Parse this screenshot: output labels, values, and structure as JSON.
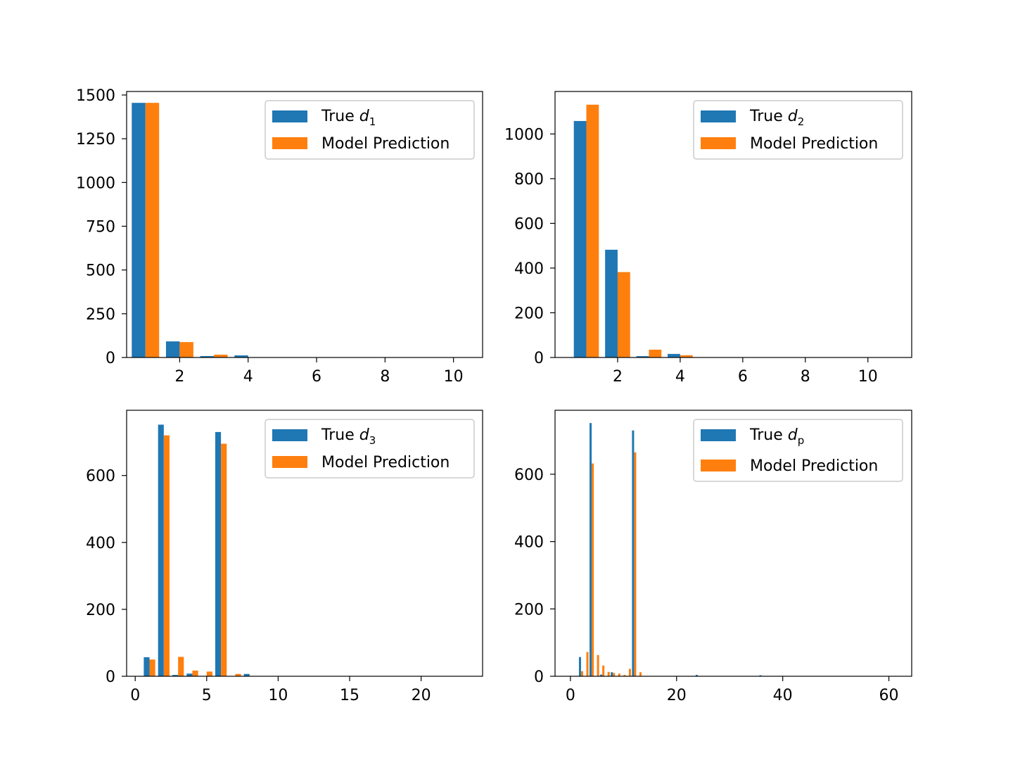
{
  "colors": {
    "true_series": "#1f77b4",
    "prediction_series": "#ff7f0e"
  },
  "chart_data": [
    {
      "type": "bar",
      "panel": "top-left",
      "xlim": [
        0.45,
        10.85
      ],
      "ylim": [
        0,
        1520
      ],
      "xticks": [
        2,
        4,
        6,
        8,
        10
      ],
      "yticks": [
        0,
        250,
        500,
        750,
        1000,
        1250,
        1500
      ],
      "bar_width": 0.4,
      "legend": {
        "placement": "top-right",
        "true_label": "True ",
        "true_sub": "1",
        "pred_label": "Model Prediction"
      },
      "series": [
        {
          "name": "True d1",
          "role": "true",
          "x": [
            1,
            2,
            3,
            4
          ],
          "values": [
            1455,
            92,
            8,
            12
          ]
        },
        {
          "name": "Model Prediction",
          "role": "pred",
          "x": [
            1,
            2,
            3
          ],
          "values": [
            1455,
            88,
            16
          ]
        }
      ]
    },
    {
      "type": "bar",
      "panel": "top-right",
      "xlim": [
        0.0,
        11.4
      ],
      "ylim": [
        0,
        1190
      ],
      "xticks": [
        2,
        4,
        6,
        8,
        10
      ],
      "yticks": [
        0,
        200,
        400,
        600,
        800,
        1000
      ],
      "bar_width": 0.4,
      "legend": {
        "placement": "top-right",
        "true_label": "True ",
        "true_sub": "2",
        "pred_label": "Model Prediction"
      },
      "series": [
        {
          "name": "True d2",
          "role": "true",
          "x": [
            1,
            2,
            3,
            4
          ],
          "values": [
            1058,
            482,
            6,
            16
          ]
        },
        {
          "name": "Model Prediction",
          "role": "pred",
          "x": [
            1,
            2,
            3,
            4
          ],
          "values": [
            1131,
            382,
            35,
            10
          ]
        }
      ]
    },
    {
      "type": "bar",
      "panel": "bottom-left",
      "xlim": [
        -0.6,
        24.3
      ],
      "ylim": [
        0,
        795
      ],
      "xticks": [
        0,
        5,
        10,
        15,
        20
      ],
      "yticks": [
        0,
        200,
        400,
        600
      ],
      "bar_width": 0.4,
      "legend": {
        "placement": "top-right",
        "true_label": "True ",
        "true_sub": "3",
        "pred_label": "Model Prediction"
      },
      "series": [
        {
          "name": "True d3",
          "role": "true",
          "x": [
            1,
            2,
            3,
            4,
            6,
            8
          ],
          "values": [
            57,
            752,
            4,
            8,
            730,
            7
          ]
        },
        {
          "name": "Model Prediction",
          "role": "pred",
          "x": [
            1,
            2,
            3,
            4,
            5,
            6,
            7
          ],
          "values": [
            50,
            720,
            58,
            17,
            14,
            695,
            7
          ]
        }
      ]
    },
    {
      "type": "bar",
      "panel": "bottom-right",
      "xlim": [
        -2.9,
        64.3
      ],
      "ylim": [
        0,
        790
      ],
      "xticks": [
        0,
        20,
        40,
        60
      ],
      "yticks": [
        0,
        200,
        400,
        600
      ],
      "bar_width": 0.4,
      "legend": {
        "placement": "top-right",
        "true_label": "True ",
        "true_sub": "p",
        "pred_label": "Model Prediction"
      },
      "series": [
        {
          "name": "True dp",
          "role": "true",
          "x": [
            2,
            4,
            6,
            8,
            12,
            24,
            36
          ],
          "values": [
            57,
            752,
            5,
            12,
            730,
            4,
            3
          ]
        },
        {
          "name": "Model Prediction",
          "role": "pred",
          "x": [
            2,
            3,
            4,
            5,
            6,
            7,
            8,
            9,
            10,
            11,
            12,
            13
          ],
          "values": [
            15,
            72,
            632,
            63,
            32,
            13,
            10,
            8,
            4,
            22,
            665,
            12
          ]
        }
      ]
    }
  ]
}
